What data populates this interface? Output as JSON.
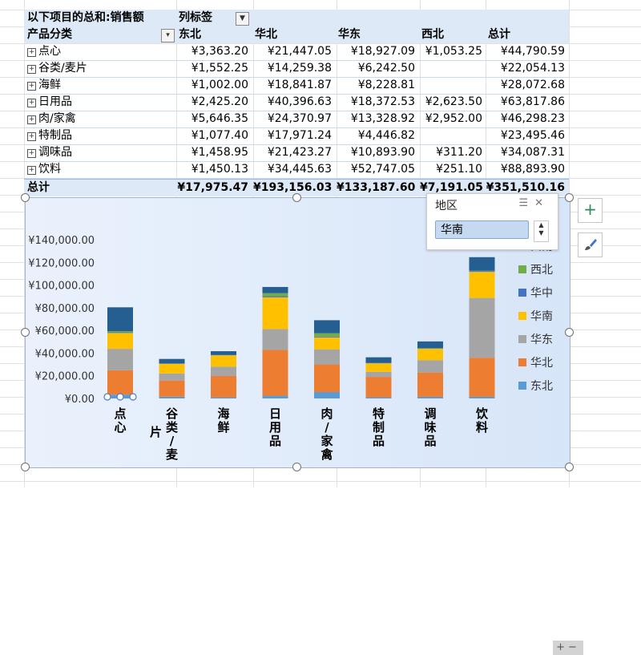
{
  "pivot": {
    "corner_title": "以下项目的总和:销售额",
    "column_label": "列标签",
    "row_label": "产品分类",
    "columns": [
      "东北",
      "华北",
      "华东",
      "西北",
      "总计"
    ],
    "rows": [
      {
        "name": "点心",
        "values": [
          "¥3,363.20",
          "¥21,447.05",
          "¥18,927.09",
          "¥1,053.25",
          "¥44,790.59"
        ]
      },
      {
        "name": "谷类/麦片",
        "values": [
          "¥1,552.25",
          "¥14,259.38",
          "¥6,242.50",
          "",
          "¥22,054.13"
        ]
      },
      {
        "name": "海鲜",
        "values": [
          "¥1,002.00",
          "¥18,841.87",
          "¥8,228.81",
          "",
          "¥28,072.68"
        ]
      },
      {
        "name": "日用品",
        "values": [
          "¥2,425.20",
          "¥40,396.63",
          "¥18,372.53",
          "¥2,623.50",
          "¥63,817.86"
        ]
      },
      {
        "name": "肉/家禽",
        "values": [
          "¥5,646.35",
          "¥24,370.97",
          "¥13,328.92",
          "¥2,952.00",
          "¥46,298.23"
        ]
      },
      {
        "name": "特制品",
        "values": [
          "¥1,077.40",
          "¥17,971.24",
          "¥4,446.82",
          "",
          "¥23,495.46"
        ]
      },
      {
        "name": "调味品",
        "values": [
          "¥1,458.95",
          "¥21,423.27",
          "¥10,893.90",
          "¥311.20",
          "¥34,087.31"
        ]
      },
      {
        "name": "饮料",
        "values": [
          "¥1,450.13",
          "¥34,445.63",
          "¥52,747.05",
          "¥251.10",
          "¥88,893.90"
        ]
      }
    ],
    "total": {
      "name": "总计",
      "values": [
        "¥17,975.47",
        "¥193,156.03",
        "¥133,187.60",
        "¥7,191.05",
        "¥351,510.16"
      ]
    }
  },
  "slicer": {
    "title": "地区",
    "selected_item": "华南",
    "icons": [
      "multi-select-icon",
      "clear-filter-icon"
    ]
  },
  "side_buttons": {
    "add_element": "+",
    "style": "brush"
  },
  "chart_data": {
    "type": "bar",
    "stacked": true,
    "categories": [
      "点心",
      "谷类/麦片",
      "海鲜",
      "日用品",
      "肉/家禽",
      "特制品",
      "调味品",
      "饮料"
    ],
    "category_labels_vertical": [
      "点\n心",
      "谷\n类\n/\n麦",
      "海\n鲜",
      "日\n用\n品",
      "肉\n/\n家\n禽",
      "特\n制\n品",
      "调\n味\n品",
      "饮\n料"
    ],
    "category_label_overflow": "片",
    "y_ticks": [
      "¥140,000.00",
      "¥120,000.00",
      "¥100,000.00",
      "¥80,000.00",
      "¥60,000.00",
      "¥40,000.00",
      "¥20,000.00",
      "¥0.00"
    ],
    "ylim": [
      0,
      140000
    ],
    "grid": false,
    "legend_position": "right",
    "series": [
      {
        "name": "东北",
        "color": "#5b9bd5",
        "values": [
          3363.2,
          1552.25,
          1002.0,
          2425.2,
          5646.35,
          1077.4,
          1458.95,
          1450.13
        ]
      },
      {
        "name": "华北",
        "color": "#ed7d31",
        "values": [
          21447.05,
          14259.38,
          18841.87,
          40396.63,
          24370.97,
          17971.24,
          21423.27,
          34445.63
        ]
      },
      {
        "name": "华东",
        "color": "#a5a5a5",
        "values": [
          18927.09,
          6242.5,
          8228.81,
          18372.53,
          13328.92,
          4446.82,
          10893.9,
          52747.05
        ]
      },
      {
        "name": "华南",
        "color": "#ffc000",
        "values": [
          14000,
          8500,
          10000,
          28000,
          10500,
          7500,
          10000,
          23000
        ]
      },
      {
        "name": "华中",
        "color": "#4472c4",
        "values": [
          600,
          300,
          400,
          1000,
          700,
          300,
          400,
          700
        ]
      },
      {
        "name": "西北",
        "color": "#70ad47",
        "values": [
          1053.25,
          0,
          0,
          2623.5,
          2952.0,
          0,
          311.2,
          251.1
        ]
      },
      {
        "name": "西南",
        "color": "#255e91",
        "values": [
          21000,
          4000,
          3200,
          5500,
          11500,
          5000,
          5800,
          12000
        ]
      }
    ],
    "legend_visible_text": [
      "西南",
      "西北",
      "华中",
      "华南",
      "华东",
      "华北",
      "东北"
    ]
  },
  "colors": {
    "header_bg": "#dde9f7",
    "slicer_selected": "#c5d9f1"
  }
}
